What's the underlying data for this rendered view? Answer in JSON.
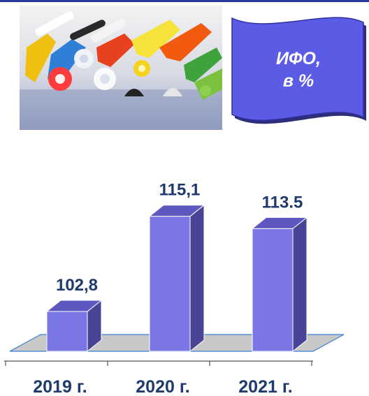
{
  "banner": {
    "line1": "ИФО,",
    "line2": "в %"
  },
  "photo": {
    "subject": "colored rubber and silicone profiles"
  },
  "colors": {
    "bar_front": "#7a76e6",
    "bar_side": "#4a4496",
    "bar_top": "#5d58c0",
    "floor": "#c8c8c8",
    "banner_fill": "#5b5be6",
    "label": "#1f3a6e"
  },
  "chart_data": {
    "type": "bar",
    "categories": [
      "2019 г.",
      "2020 г.",
      "2021 г."
    ],
    "values": [
      102.8,
      115.1,
      113.5
    ],
    "value_labels": [
      "102,8",
      "115,1",
      "113.5"
    ],
    "three_d": true
  }
}
